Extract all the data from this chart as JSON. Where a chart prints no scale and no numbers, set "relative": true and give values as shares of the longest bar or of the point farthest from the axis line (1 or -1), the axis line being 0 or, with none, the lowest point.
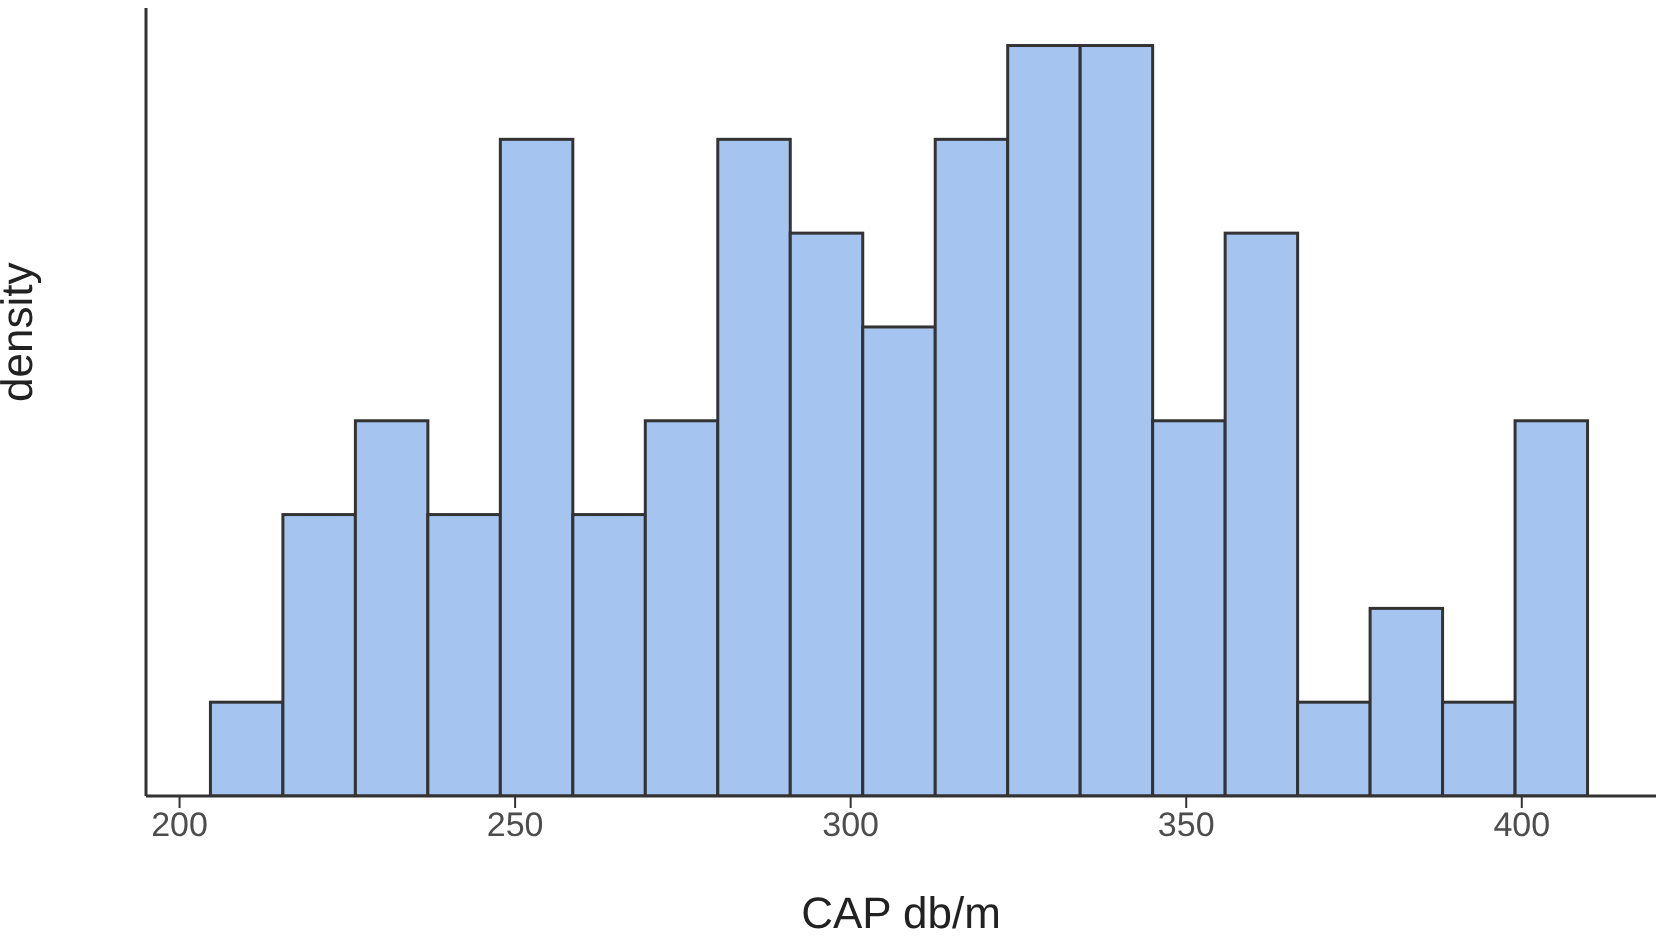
{
  "chart_data": {
    "type": "bar",
    "xlabel": "CAP db/m",
    "ylabel": "density",
    "relative": true,
    "x": [
      210,
      220.8,
      231.6,
      242.4,
      253.2,
      264,
      274.8,
      285.6,
      296.4,
      307.2,
      318,
      328.8,
      339.6,
      350.4,
      361.2,
      372,
      382.8,
      393.6,
      404.4
    ],
    "values": [
      0.125,
      0.375,
      0.5,
      0.375,
      0.875,
      0.375,
      0.5,
      0.875,
      0.75,
      0.625,
      0.875,
      1,
      1,
      0.5,
      0.75,
      0.125,
      0.25,
      0.125,
      0.5
    ],
    "color": "#a6c4f0",
    "xlim": [
      195,
      420
    ],
    "xticks": [
      200,
      250,
      300,
      350,
      400
    ],
    "grid": false
  }
}
